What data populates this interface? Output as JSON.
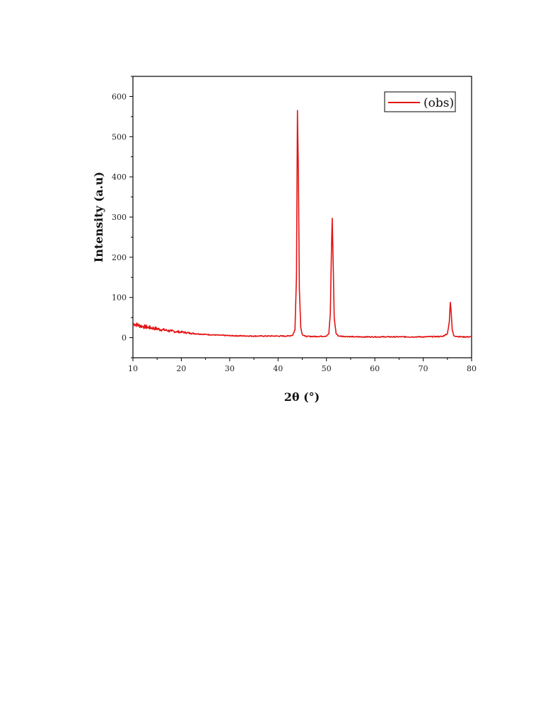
{
  "chart_data": {
    "type": "line",
    "title": "",
    "xlabel": "2θ (°)",
    "ylabel": "Intensity (a.u)",
    "xlim": [
      10,
      80
    ],
    "ylim": [
      -50,
      650
    ],
    "x_ticks": [
      10,
      20,
      30,
      40,
      50,
      60,
      70,
      80
    ],
    "y_ticks": [
      0,
      100,
      200,
      300,
      400,
      500,
      600
    ],
    "grid": false,
    "legend": {
      "position": "top-right",
      "entries": [
        "(obs)"
      ]
    },
    "colors": {
      "series": "#e41212",
      "axis": "#000000"
    },
    "series": [
      {
        "name": "(obs)",
        "x": [
          10,
          12,
          14,
          16,
          18,
          20,
          22,
          25,
          28,
          30,
          35,
          40,
          42,
          43,
          43.5,
          43.8,
          44.0,
          44.2,
          44.4,
          44.7,
          45.0,
          45.5,
          46,
          48,
          50,
          50.5,
          50.8,
          51.0,
          51.2,
          51.4,
          51.6,
          52.0,
          52.5,
          54,
          56,
          60,
          65,
          70,
          74,
          75,
          75.4,
          75.6,
          75.8,
          76.0,
          76.3,
          77,
          78,
          80
        ],
        "y": [
          35,
          28,
          24,
          20,
          16,
          14,
          11,
          8,
          6,
          5,
          4,
          4,
          4,
          6,
          20,
          150,
          565,
          420,
          120,
          25,
          8,
          4,
          3,
          3,
          4,
          10,
          60,
          200,
          297,
          180,
          50,
          10,
          4,
          3,
          2,
          2,
          2,
          2,
          3,
          10,
          40,
          88,
          60,
          20,
          5,
          3,
          2,
          2
        ]
      }
    ]
  }
}
